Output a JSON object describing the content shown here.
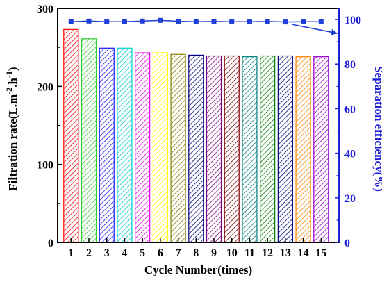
{
  "colors": {
    "axis_left": "#000000",
    "axis_right": "#1f1fd6",
    "efficiency_line": "#1f3fd6"
  },
  "chart_data": {
    "type": "bar",
    "title": "",
    "xlabel": "Cycle Number(times)",
    "ylabel_left": {
      "base": "Filtration rate(L",
      "middle": ".m",
      "exp1": "-2",
      "middle2": ".h",
      "exp2": "-1",
      "end": ")"
    },
    "ylabel_right": "Separation efficiency(%)",
    "categories": [
      "1",
      "2",
      "3",
      "4",
      "5",
      "6",
      "7",
      "8",
      "9",
      "10",
      "11",
      "12",
      "13",
      "14",
      "15"
    ],
    "ylim_left": [
      0,
      300
    ],
    "yticks_left": [
      "0",
      "100",
      "200",
      "300"
    ],
    "ylim_right": [
      0,
      105
    ],
    "yticks_right": [
      "0",
      "20",
      "40",
      "60",
      "80",
      "100"
    ],
    "grid": false,
    "series": [
      {
        "axis": "left",
        "kind": "bar-hatched",
        "values": [
          273,
          261,
          249,
          249,
          243,
          243,
          241,
          240,
          239,
          239,
          238,
          239,
          239,
          238,
          238
        ],
        "colors": [
          "#ff0000",
          "#33cc33",
          "#1a1aff",
          "#00cccc",
          "#e600e6",
          "#ffff00",
          "#808000",
          "#000080",
          "#800080",
          "#800000",
          "#008080",
          "#008000",
          "#000080",
          "#ff8000",
          "#9900cc"
        ]
      },
      {
        "axis": "right",
        "kind": "line-square",
        "values": [
          99.0,
          99.3,
          99.0,
          99.0,
          99.3,
          99.6,
          99.2,
          99.0,
          99.1,
          99.0,
          99.0,
          99.1,
          98.9,
          99.0,
          99.0
        ]
      }
    ],
    "annotations": [
      {
        "kind": "arrow",
        "from": [
          13.4,
          99.0
        ],
        "to": [
          15.0,
          95.0
        ],
        "points_to": "right axis"
      }
    ]
  }
}
